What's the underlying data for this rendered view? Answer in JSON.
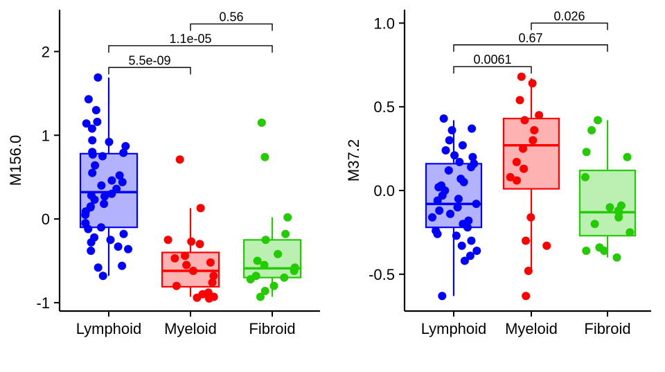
{
  "colors": {
    "Lymphoid": "#0000FF",
    "Myeloid": "#FF0000",
    "Fibroid": "#22CC00"
  },
  "chart_data": [
    {
      "type": "boxplot",
      "ylabel": "M156.0",
      "categories": [
        "Lymphoid",
        "Myeloid",
        "Fibroid"
      ],
      "ylim": [
        -1.1,
        2.5
      ],
      "yticks": [
        -1,
        0,
        1,
        2
      ],
      "ytick_labels": [
        "-1",
        "0",
        "1",
        "2"
      ],
      "boxes": [
        {
          "name": "Lymphoid",
          "whisker_low": -0.68,
          "q1": -0.1,
          "median": 0.32,
          "q3": 0.78,
          "whisker_high": 1.69
        },
        {
          "name": "Myeloid",
          "whisker_low": -0.93,
          "q1": -0.81,
          "median": -0.62,
          "q3": -0.4,
          "whisker_high": 0.13
        },
        {
          "name": "Fibroid",
          "whisker_low": -0.93,
          "q1": -0.7,
          "median": -0.59,
          "q3": -0.25,
          "whisker_high": 0.02
        }
      ],
      "points": [
        [
          1.69,
          1.43,
          1.3,
          1.16,
          1.14,
          1.08,
          0.94,
          0.92,
          0.87,
          0.8,
          0.79,
          0.77,
          0.75,
          0.64,
          0.55,
          0.52,
          0.46,
          0.44,
          0.4,
          0.36,
          0.3,
          0.28,
          0.27,
          0.23,
          0.18,
          0.15,
          0.14,
          0.09,
          0.05,
          -0.05,
          -0.1,
          -0.12,
          -0.18,
          -0.22,
          -0.25,
          -0.28,
          -0.33,
          -0.36,
          -0.38,
          -0.56,
          -0.58,
          -0.68
        ],
        [
          0.71,
          0.13,
          -0.25,
          -0.27,
          -0.3,
          -0.44,
          -0.47,
          -0.52,
          -0.55,
          -0.62,
          -0.68,
          -0.76,
          -0.8,
          -0.88,
          -0.9,
          -0.93,
          -0.94,
          -0.95
        ],
        [
          1.15,
          0.74,
          0.02,
          -0.18,
          -0.25,
          -0.42,
          -0.5,
          -0.55,
          -0.58,
          -0.62,
          -0.68,
          -0.7,
          -0.72,
          -0.8,
          -0.86,
          -0.93
        ]
      ],
      "comparisons": [
        {
          "from": "Lymphoid",
          "to": "Myeloid",
          "label": "5.5e-09",
          "y": 1.81
        },
        {
          "from": "Lymphoid",
          "to": "Fibroid",
          "label": "1.1e-05",
          "y": 2.07
        },
        {
          "from": "Myeloid",
          "to": "Fibroid",
          "label": "0.56",
          "y": 2.33
        }
      ]
    },
    {
      "type": "boxplot",
      "ylabel": "M37.2",
      "categories": [
        "Lymphoid",
        "Myeloid",
        "Fibroid"
      ],
      "ylim": [
        -0.72,
        1.08
      ],
      "yticks": [
        -0.5,
        0.0,
        0.5,
        1.0
      ],
      "ytick_labels": [
        "-0.5",
        "0.0",
        "0.5",
        "1.0"
      ],
      "boxes": [
        {
          "name": "Lymphoid",
          "whisker_low": -0.63,
          "q1": -0.22,
          "median": -0.08,
          "q3": 0.16,
          "whisker_high": 0.42
        },
        {
          "name": "Myeloid",
          "whisker_low": -0.48,
          "q1": 0.01,
          "median": 0.27,
          "q3": 0.43,
          "whisker_high": 0.67
        },
        {
          "name": "Fibroid",
          "whisker_low": -0.4,
          "q1": -0.27,
          "median": -0.13,
          "q3": 0.12,
          "whisker_high": 0.42
        }
      ],
      "points": [
        [
          0.43,
          0.37,
          0.36,
          0.3,
          0.27,
          0.24,
          0.21,
          0.2,
          0.17,
          0.16,
          0.14,
          0.12,
          0.07,
          0.05,
          0.03,
          0.02,
          0.0,
          -0.03,
          -0.05,
          -0.06,
          -0.08,
          -0.1,
          -0.12,
          -0.14,
          -0.16,
          -0.18,
          -0.2,
          -0.22,
          -0.24,
          -0.26,
          -0.27,
          -0.3,
          -0.33,
          -0.36,
          -0.39,
          -0.42,
          -0.63
        ],
        [
          0.68,
          0.64,
          0.54,
          0.45,
          0.42,
          0.36,
          0.3,
          0.25,
          0.17,
          0.13,
          0.08,
          0.06,
          -0.16,
          -0.3,
          -0.33,
          -0.48,
          -0.63
        ],
        [
          0.42,
          0.36,
          0.23,
          0.2,
          0.08,
          -0.09,
          -0.1,
          -0.12,
          -0.13,
          -0.16,
          -0.2,
          -0.25,
          -0.34,
          -0.36,
          -0.36,
          -0.4
        ]
      ],
      "comparisons": [
        {
          "from": "Lymphoid",
          "to": "Myeloid",
          "label": "0.0061",
          "y": 0.74
        },
        {
          "from": "Lymphoid",
          "to": "Fibroid",
          "label": "0.67",
          "y": 0.87
        },
        {
          "from": "Myeloid",
          "to": "Fibroid",
          "label": "0.026",
          "y": 1.0
        }
      ]
    }
  ]
}
